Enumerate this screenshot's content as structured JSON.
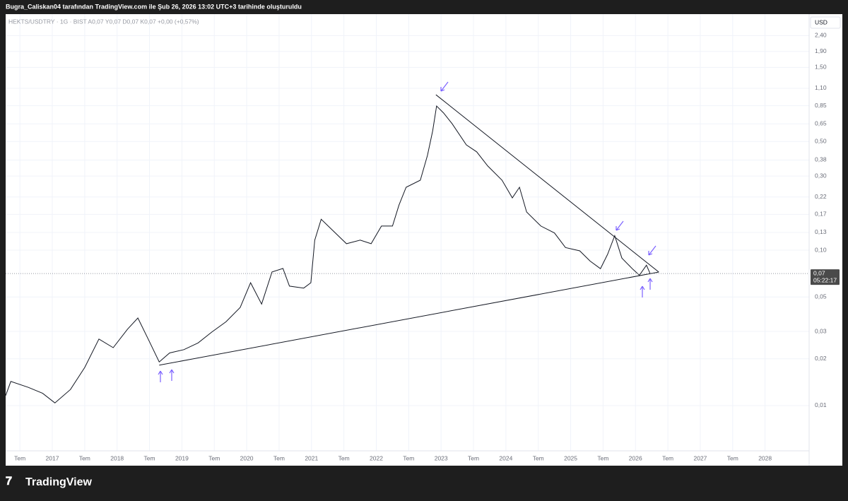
{
  "header": "Bugra_Caliskan04 tarafından TradingView.com ile Şub 26, 2026 13:02 UTC+3 tarihinde oluşturuldu",
  "brand": "TradingView",
  "chart_data": {
    "type": "line",
    "legend": "HEKTS/USDTRY · 1G · BIST  A0,07  Y0,07  D0,07  K0,07  +0,00 (+0,57%)",
    "currency": "USD",
    "log_scale": true,
    "grid": true,
    "color": "#131722",
    "x": [
      2016.28,
      2016.36,
      2016.63,
      2016.85,
      2017.04,
      2017.28,
      2017.5,
      2017.72,
      2017.94,
      2018.16,
      2018.32,
      2018.48,
      2018.65,
      2018.81,
      2019.03,
      2019.25,
      2019.46,
      2019.68,
      2019.9,
      2020.06,
      2020.23,
      2020.39,
      2020.56,
      2020.66,
      2020.88,
      2020.99,
      2021.05,
      2021.15,
      2021.32,
      2021.54,
      2021.75,
      2021.92,
      2022.08,
      2022.25,
      2022.35,
      2022.46,
      2022.68,
      2022.79,
      2022.87,
      2022.93,
      2023.04,
      2023.17,
      2023.39,
      2023.55,
      2023.72,
      2023.94,
      2024.1,
      2024.21,
      2024.32,
      2024.54,
      2024.75,
      2024.92,
      2025.14,
      2025.3,
      2025.46,
      2025.57,
      2025.68,
      2025.79,
      2025.95,
      2026.06,
      2026.17,
      2026.23
    ],
    "values": [
      0.0116,
      0.0143,
      0.0131,
      0.012,
      0.0104,
      0.0127,
      0.0176,
      0.0268,
      0.0236,
      0.031,
      0.0366,
      0.0268,
      0.0191,
      0.0218,
      0.0229,
      0.0253,
      0.0297,
      0.0346,
      0.0428,
      0.0617,
      0.045,
      0.0724,
      0.0763,
      0.0587,
      0.057,
      0.0617,
      0.116,
      0.158,
      0.135,
      0.11,
      0.116,
      0.11,
      0.143,
      0.143,
      0.195,
      0.254,
      0.282,
      0.407,
      0.586,
      0.846,
      0.762,
      0.651,
      0.476,
      0.429,
      0.348,
      0.282,
      0.217,
      0.254,
      0.176,
      0.143,
      0.129,
      0.104,
      0.099,
      0.085,
      0.076,
      0.094,
      0.124,
      0.089,
      0.076,
      0.069,
      0.08,
      0.07
    ],
    "trendlines": [
      {
        "x": [
          2022.92,
          2026.36
        ],
        "values": [
          1.0,
          0.0723
        ]
      },
      {
        "x": [
          2018.65,
          2026.36
        ],
        "values": [
          0.0182,
          0.0723
        ]
      }
    ],
    "last_price": {
      "value": 0.0707,
      "label": "0,07"
    },
    "countdown": "05:22:17",
    "xlim": [
      2016.28,
      2028.68
    ],
    "xticks": [
      {
        "value": 2016.5,
        "label": "Tem"
      },
      2017,
      {
        "value": 2017.5,
        "label": "Tem"
      },
      2018,
      {
        "value": 2018.5,
        "label": "Tem"
      },
      2019,
      {
        "value": 2019.5,
        "label": "Tem"
      },
      2020,
      {
        "value": 2020.5,
        "label": "Tem"
      },
      2021,
      {
        "value": 2021.5,
        "label": "Tem"
      },
      2022,
      {
        "value": 2022.5,
        "label": "Tem"
      },
      2023,
      {
        "value": 2023.5,
        "label": "Tem"
      },
      2024,
      {
        "value": 2024.5,
        "label": "Tem"
      },
      2025,
      {
        "value": 2025.5,
        "label": "Tem"
      },
      2026,
      {
        "value": 2026.5,
        "label": "Tem"
      },
      2027,
      {
        "value": 2027.5,
        "label": "Tem"
      },
      2028
    ],
    "ylim": [
      0.00415,
      3.3
    ],
    "yticks": [
      {
        "value": 0.01,
        "label": "0,01"
      },
      {
        "value": 0.02,
        "label": "0,02"
      },
      {
        "value": 0.03,
        "label": "0,03"
      },
      {
        "value": 0.05,
        "label": "0,05"
      },
      {
        "value": 0.1,
        "label": "0,10"
      },
      {
        "value": 0.13,
        "label": "0,13"
      },
      {
        "value": 0.17,
        "label": "0,17"
      },
      {
        "value": 0.22,
        "label": "0,22"
      },
      {
        "value": 0.3,
        "label": "0,30"
      },
      {
        "value": 0.38,
        "label": "0,38"
      },
      {
        "value": 0.5,
        "label": "0,50"
      },
      {
        "value": 0.65,
        "label": "0,65"
      },
      {
        "value": 0.85,
        "label": "0,85"
      },
      {
        "value": 1.1,
        "label": "1,10"
      },
      {
        "value": 1.5,
        "label": "1,50"
      },
      {
        "value": 1.9,
        "label": "1,90"
      },
      {
        "value": 2.4,
        "label": "2,40"
      }
    ]
  }
}
